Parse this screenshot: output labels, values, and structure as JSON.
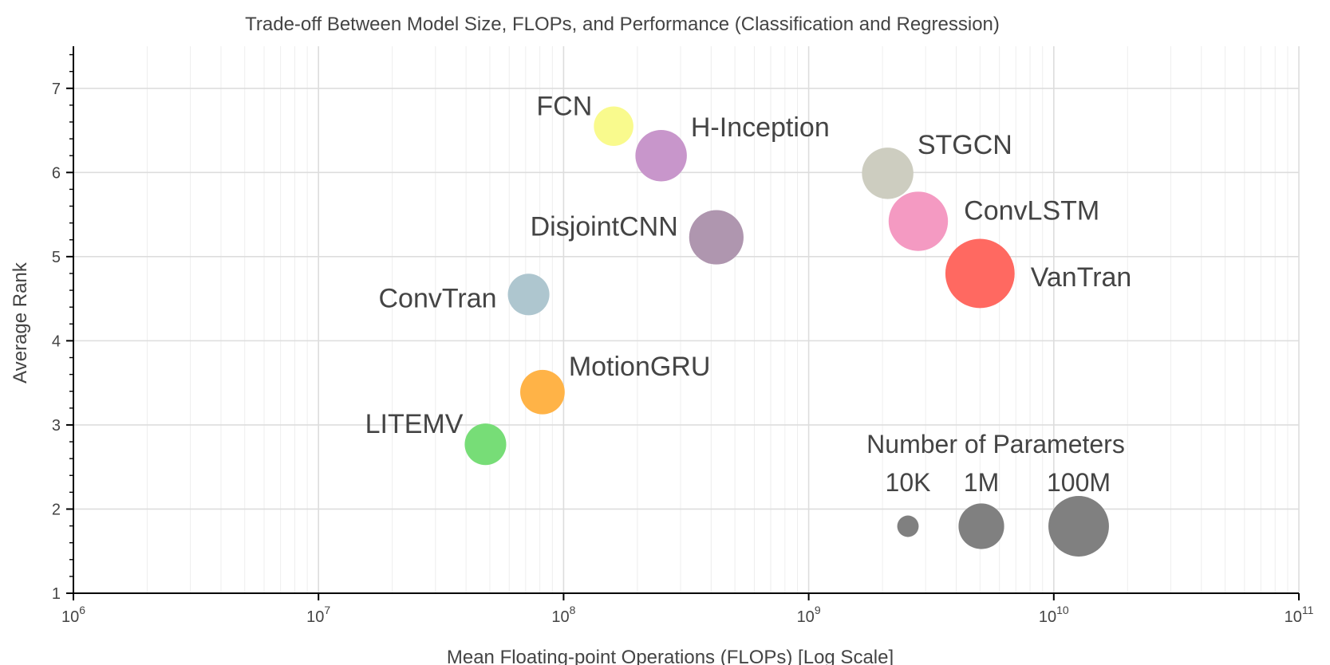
{
  "chart_data": {
    "type": "scatter",
    "title": "Trade-off Between Model Size, FLOPs, and Performance (Classification and Regression)",
    "xlabel": "Mean Floating-point Operations (FLOPs) [Log Scale]",
    "ylabel": "Average Rank",
    "x_scale": "log",
    "xlim": [
      1000000,
      100000000000
    ],
    "ylim": [
      1,
      7.5
    ],
    "x_ticks": [
      {
        "base": "10",
        "exp": "6",
        "value": 1000000
      },
      {
        "base": "10",
        "exp": "7",
        "value": 10000000
      },
      {
        "base": "10",
        "exp": "8",
        "value": 100000000
      },
      {
        "base": "10",
        "exp": "9",
        "value": 1000000000
      },
      {
        "base": "10",
        "exp": "10",
        "value": 10000000000
      },
      {
        "base": "10",
        "exp": "11",
        "value": 100000000000
      }
    ],
    "y_ticks": [
      "1",
      "2",
      "3",
      "4",
      "5",
      "6",
      "7"
    ],
    "grid": true,
    "points": [
      {
        "name": "FCN",
        "x": 160000000,
        "y": 6.55,
        "size_level": 0.4,
        "color": "#F9FA8D",
        "label_side": "upper-left"
      },
      {
        "name": "H-Inception",
        "x": 250000000,
        "y": 6.2,
        "size_level": 0.52,
        "color": "#C896CB",
        "label_side": "upper-right"
      },
      {
        "name": "STGCN",
        "x": 2100000000,
        "y": 5.99,
        "size_level": 0.52,
        "color": "#CDCDC0",
        "label_side": "upper-right"
      },
      {
        "name": "DisjointCNN",
        "x": 420000000,
        "y": 5.23,
        "size_level": 0.55,
        "color": "#AF96AF",
        "label_side": "left"
      },
      {
        "name": "ConvLSTM",
        "x": 2800000000,
        "y": 5.42,
        "size_level": 0.6,
        "color": "#F49AC2",
        "label_side": "right"
      },
      {
        "name": "VanTran",
        "x": 5000000000,
        "y": 4.8,
        "size_level": 0.7,
        "color": "#FF6961",
        "label_side": "right"
      },
      {
        "name": "ConvTran",
        "x": 72000000,
        "y": 4.55,
        "size_level": 0.42,
        "color": "#AEC6CF",
        "label_side": "left"
      },
      {
        "name": "MotionGRU",
        "x": 82000000,
        "y": 3.39,
        "size_level": 0.45,
        "color": "#FFB347",
        "label_side": "upper-right"
      },
      {
        "name": "LITEMV",
        "x": 48000000,
        "y": 2.77,
        "size_level": 0.42,
        "color": "#77DD77",
        "label_side": "upper-left"
      }
    ],
    "legend": {
      "title": "Number of Parameters",
      "placement": "bottom-right",
      "color": "#808080",
      "items": [
        {
          "label": "10K",
          "size_level": 0.35
        },
        {
          "label": "1M",
          "size_level": 0.53
        },
        {
          "label": "100M",
          "size_level": 0.72
        }
      ]
    }
  }
}
